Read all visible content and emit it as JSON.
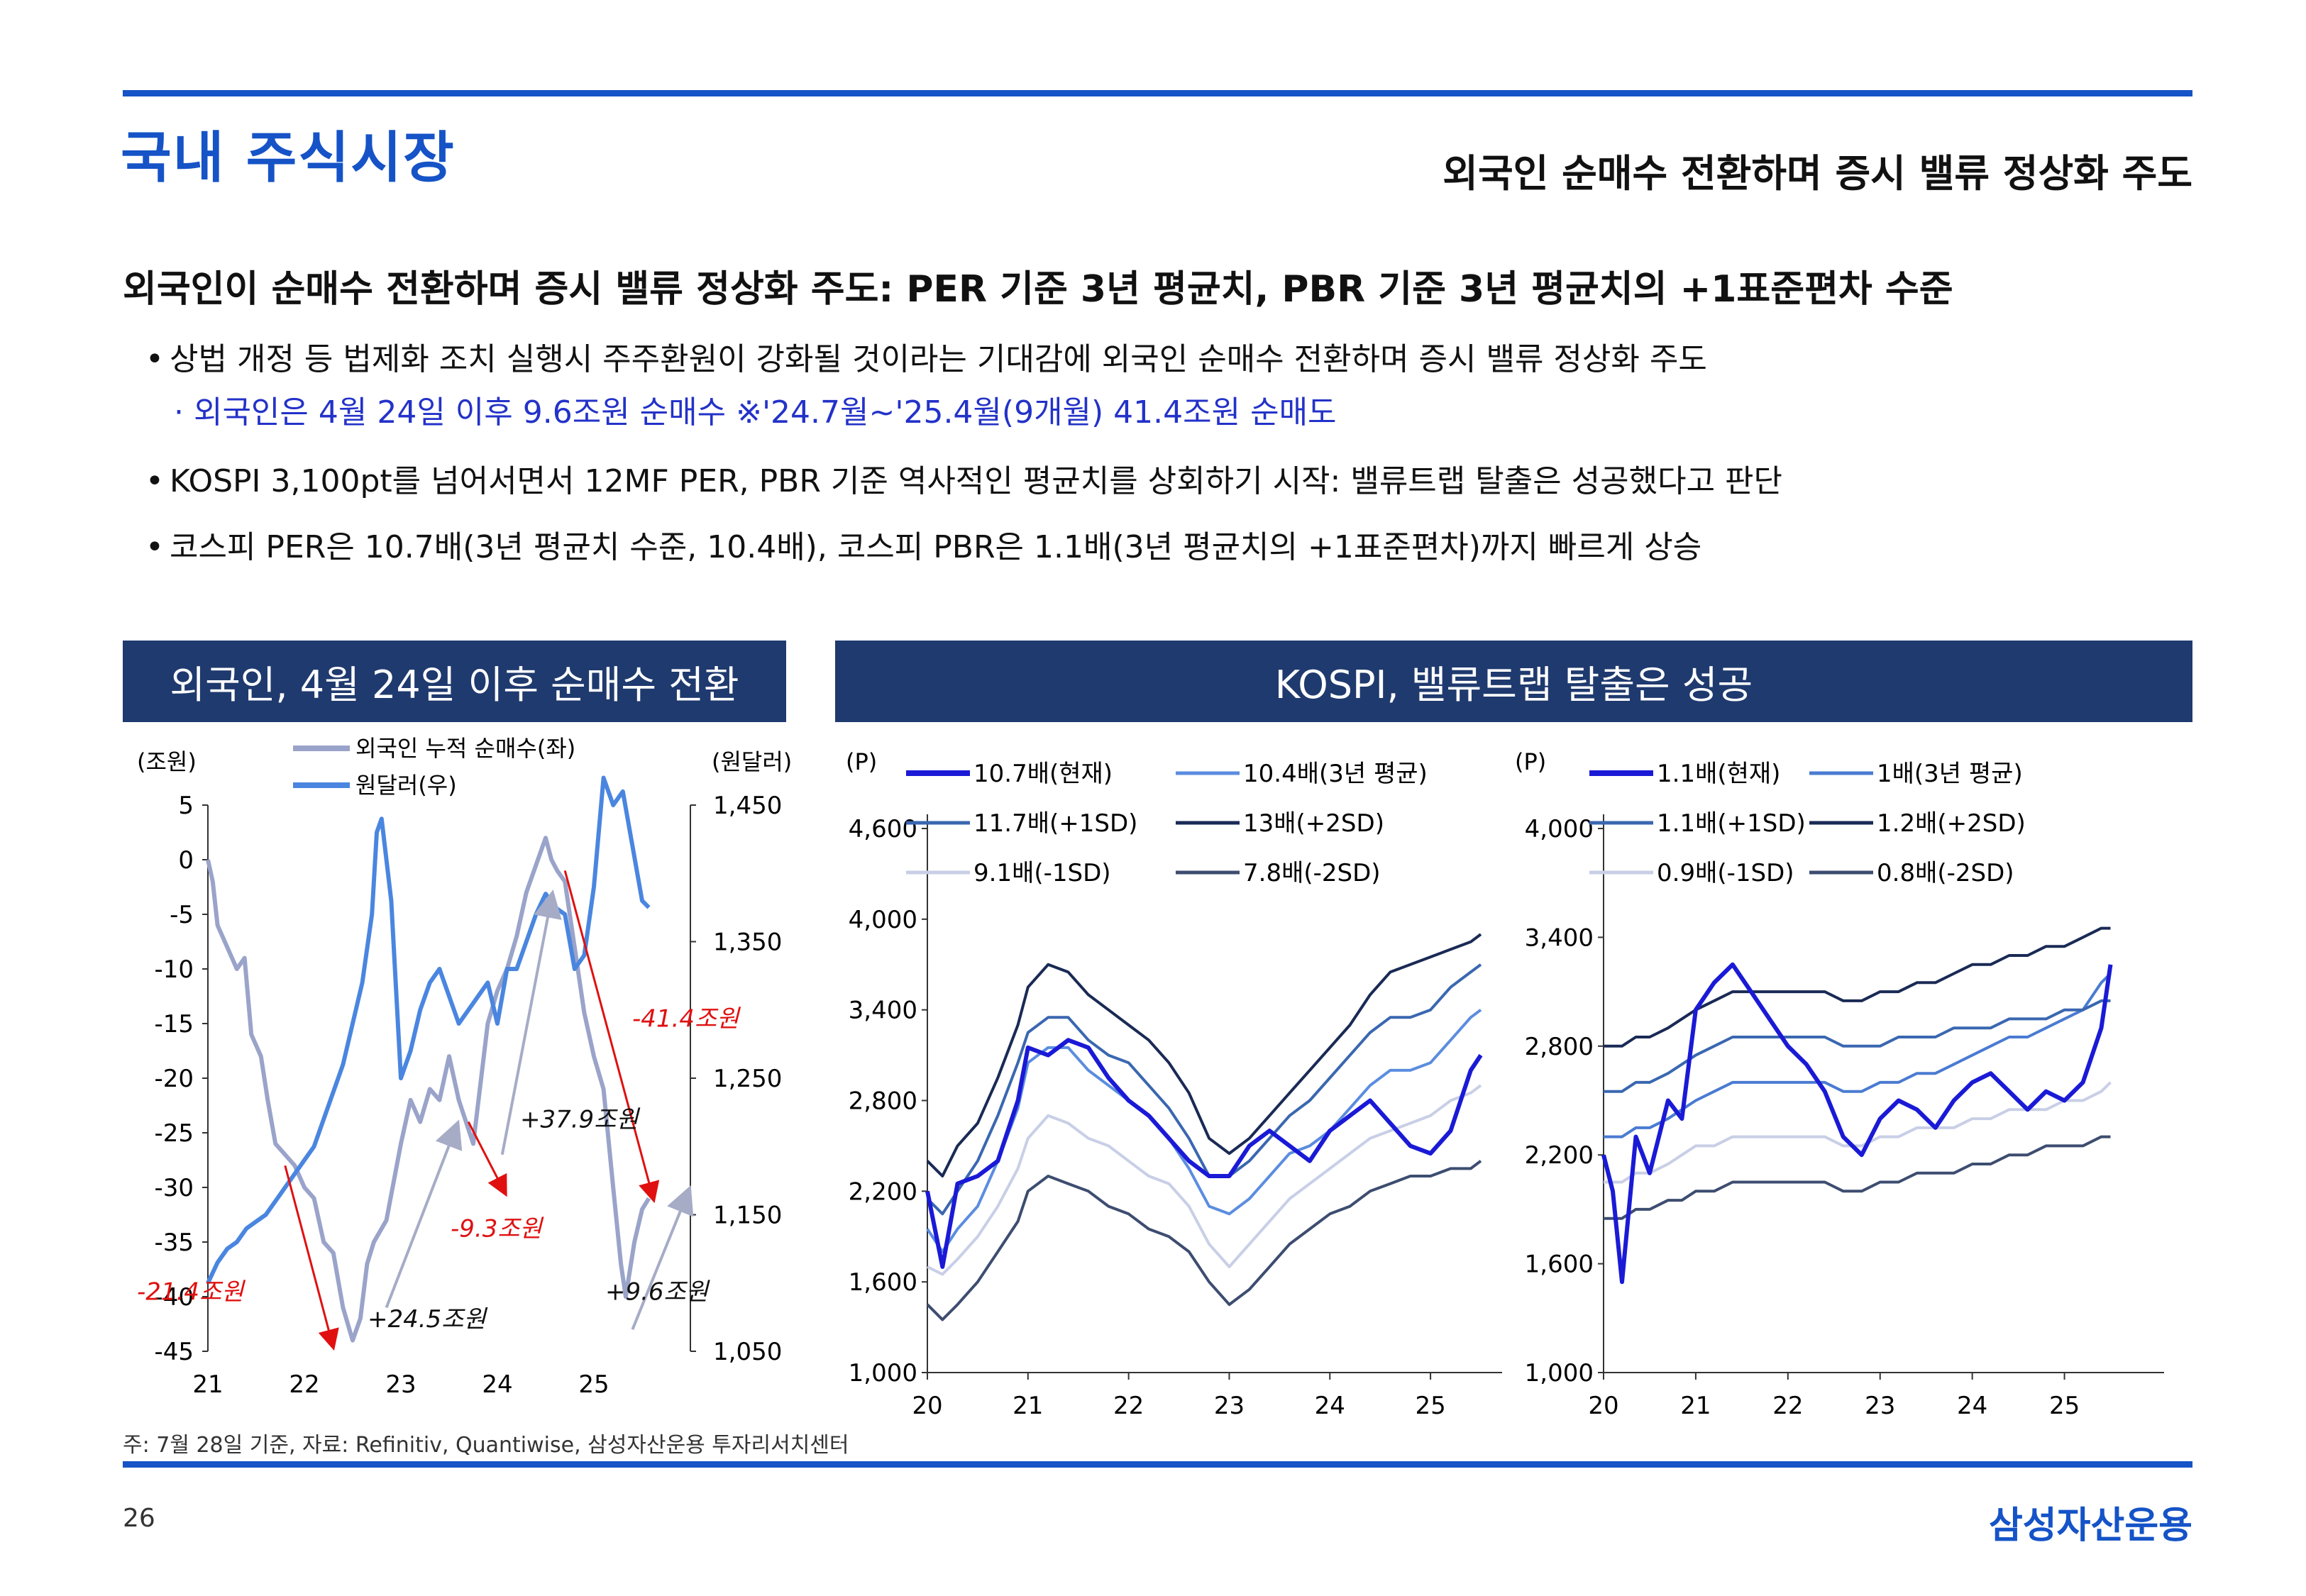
{
  "header": {
    "section_title": "국내 주식시장",
    "subtitle": "외국인 순매수 전환하며 증시 밸류 정상화 주도"
  },
  "headline": "외국인이 순매수 전환하며 증시 밸류 정상화 주도: PER 기준 3년 평균치, PBR 기준 3년 평균치의 +1표준편차 수준",
  "bullets": [
    "상법 개정 등 법제화 조치 실행시 주주환원이 강화될 것이라는 기대감에 외국인 순매수 전환하며 증시 밸류 정상화 주도",
    "KOSPI 3,100pt를 넘어서면서 12MF PER, PBR 기준 역사적인 평균치를 상회하기 시작: 밸류트랩 탈출은 성공했다고 판단",
    "코스피 PER은 10.7배(3년 평균치 수준, 10.4배), 코스피 PBR은 1.1배(3년 평균치의 +1표준편차)까지 빠르게 상승"
  ],
  "bullet_note": "· 외국인은 4월 24일 이후 9.6조원 순매수 ※'24.7월~'25.4월(9개월) 41.4조원 순매도",
  "banners": {
    "left": "외국인, 4월 24일 이후 순매수 전환",
    "right": "KOSPI, 밸류트랩 탈출은 성공"
  },
  "chart_data": [
    {
      "type": "line",
      "x_ticks": [
        "21",
        "22",
        "23",
        "24",
        "25"
      ],
      "y_left": {
        "label": "(조원)",
        "ticks": [
          "5",
          "0",
          "-5",
          "-10",
          "-15",
          "-20",
          "-25",
          "-30",
          "-35",
          "-40",
          "-45"
        ],
        "range": [
          -45,
          5
        ]
      },
      "y_right": {
        "label": "(원달러)",
        "ticks": [
          "1,450",
          "1,350",
          "1,250",
          "1,150",
          "1,050"
        ],
        "range": [
          1050,
          1450
        ]
      },
      "series": [
        {
          "name": "외국인 누적 순매수(좌)",
          "color": "#9aa3c9",
          "axis": "left",
          "x": [
            2021.0,
            2021.05,
            2021.1,
            2021.2,
            2021.3,
            2021.38,
            2021.45,
            2021.55,
            2021.62,
            2021.7,
            2021.8,
            2021.9,
            2022.0,
            2022.1,
            2022.2,
            2022.3,
            2022.4,
            2022.5,
            2022.58,
            2022.65,
            2022.72,
            2022.85,
            2023.0,
            2023.1,
            2023.2,
            2023.3,
            2023.4,
            2023.5,
            2023.6,
            2023.75,
            2023.9,
            2024.0,
            2024.1,
            2024.2,
            2024.3,
            2024.42,
            2024.5,
            2024.56,
            2024.62,
            2024.7,
            2024.8,
            2024.9,
            2025.0,
            2025.1,
            2025.2,
            2025.28,
            2025.33,
            2025.42,
            2025.5,
            2025.57
          ],
          "y": [
            0,
            -2,
            -6,
            -8,
            -10,
            -9,
            -16,
            -18,
            -22,
            -26,
            -27,
            -28,
            -30,
            -31,
            -35,
            -36,
            -41,
            -44,
            -42,
            -37,
            -35,
            -33,
            -26,
            -22,
            -24,
            -21,
            -22,
            -18,
            -22,
            -26,
            -15,
            -12,
            -10,
            -7,
            -3,
            0,
            2,
            0,
            -1,
            -2,
            -8,
            -14,
            -18,
            -21,
            -30,
            -37,
            -40,
            -35,
            -32,
            -31
          ]
        },
        {
          "name": "원달러(우)",
          "color": "#4a86e0",
          "axis": "right",
          "x": [
            2021.0,
            2021.1,
            2021.2,
            2021.3,
            2021.4,
            2021.5,
            2021.6,
            2021.7,
            2021.8,
            2021.9,
            2022.0,
            2022.1,
            2022.2,
            2022.3,
            2022.4,
            2022.5,
            2022.6,
            2022.7,
            2022.75,
            2022.8,
            2022.85,
            2022.9,
            2023.0,
            2023.1,
            2023.2,
            2023.3,
            2023.4,
            2023.5,
            2023.6,
            2023.7,
            2023.8,
            2023.9,
            2024.0,
            2024.1,
            2024.2,
            2024.3,
            2024.4,
            2024.5,
            2024.6,
            2024.7,
            2024.8,
            2024.9,
            2025.0,
            2025.1,
            2025.2,
            2025.3,
            2025.4,
            2025.5,
            2025.57
          ],
          "y": [
            1100,
            1115,
            1125,
            1130,
            1140,
            1145,
            1150,
            1160,
            1170,
            1180,
            1190,
            1200,
            1220,
            1240,
            1260,
            1290,
            1320,
            1370,
            1430,
            1440,
            1410,
            1380,
            1250,
            1270,
            1300,
            1320,
            1330,
            1310,
            1290,
            1300,
            1310,
            1320,
            1290,
            1330,
            1330,
            1350,
            1370,
            1385,
            1375,
            1370,
            1330,
            1340,
            1390,
            1470,
            1450,
            1460,
            1420,
            1380,
            1375
          ]
        }
      ],
      "annotations": [
        "-21.4조원",
        "+24.5조원",
        "-9.3조원",
        "+37.9조원",
        "-41.4조원",
        "+9.6조원"
      ]
    },
    {
      "type": "line",
      "x_ticks": [
        "20",
        "21",
        "22",
        "23",
        "24",
        "25"
      ],
      "y": {
        "label": "(P)",
        "ticks": [
          "4,600",
          "4,000",
          "3,400",
          "2,800",
          "2,200",
          "1,600",
          "1,000"
        ],
        "range": [
          1000,
          4600
        ]
      },
      "x": [
        2020.0,
        2020.15,
        2020.3,
        2020.5,
        2020.7,
        2020.9,
        2021.0,
        2021.2,
        2021.4,
        2021.6,
        2021.8,
        2022.0,
        2022.2,
        2022.4,
        2022.6,
        2022.8,
        2023.0,
        2023.2,
        2023.4,
        2023.6,
        2023.8,
        2024.0,
        2024.2,
        2024.4,
        2024.6,
        2024.8,
        2025.0,
        2025.2,
        2025.4,
        2025.5
      ],
      "series": [
        {
          "name": "10.7배(현재)",
          "color": "#1a1ad6",
          "y": [
            2200,
            1700,
            2250,
            2300,
            2400,
            2800,
            3150,
            3100,
            3200,
            3150,
            2950,
            2800,
            2700,
            2550,
            2400,
            2300,
            2300,
            2500,
            2600,
            2500,
            2400,
            2600,
            2700,
            2800,
            2650,
            2500,
            2450,
            2600,
            3000,
            3100
          ]
        },
        {
          "name": "10.4배(3년 평균)",
          "color": "#5b8de0",
          "y": [
            1950,
            1800,
            1950,
            2100,
            2400,
            2750,
            3050,
            3150,
            3150,
            3000,
            2900,
            2800,
            2700,
            2550,
            2350,
            2100,
            2050,
            2150,
            2300,
            2450,
            2500,
            2600,
            2750,
            2900,
            3000,
            3000,
            3050,
            3200,
            3350,
            3400
          ]
        },
        {
          "name": "11.7배(+1SD)",
          "color": "#3a67b0",
          "y": [
            2150,
            2050,
            2200,
            2400,
            2700,
            3050,
            3250,
            3350,
            3350,
            3200,
            3100,
            3050,
            2900,
            2750,
            2550,
            2300,
            2300,
            2400,
            2550,
            2700,
            2800,
            2950,
            3100,
            3250,
            3350,
            3350,
            3400,
            3550,
            3650,
            3700
          ]
        },
        {
          "name": "13배(+2SD)",
          "color": "#1a2a55",
          "y": [
            2400,
            2300,
            2500,
            2650,
            2950,
            3300,
            3550,
            3700,
            3650,
            3500,
            3400,
            3300,
            3200,
            3050,
            2850,
            2550,
            2450,
            2550,
            2700,
            2850,
            3000,
            3150,
            3300,
            3500,
            3650,
            3700,
            3750,
            3800,
            3850,
            3900
          ]
        },
        {
          "name": "9.1배(-1SD)",
          "color": "#c8cfe6",
          "y": [
            1700,
            1650,
            1750,
            1900,
            2100,
            2350,
            2550,
            2700,
            2650,
            2550,
            2500,
            2400,
            2300,
            2250,
            2100,
            1850,
            1700,
            1850,
            2000,
            2150,
            2250,
            2350,
            2450,
            2550,
            2600,
            2650,
            2700,
            2800,
            2850,
            2900
          ]
        },
        {
          "name": "7.8배(-2SD)",
          "color": "#3d4d70",
          "y": [
            1450,
            1350,
            1450,
            1600,
            1800,
            2000,
            2200,
            2300,
            2250,
            2200,
            2100,
            2050,
            1950,
            1900,
            1800,
            1600,
            1450,
            1550,
            1700,
            1850,
            1950,
            2050,
            2100,
            2200,
            2250,
            2300,
            2300,
            2350,
            2350,
            2400
          ]
        }
      ]
    },
    {
      "type": "line",
      "x_ticks": [
        "20",
        "21",
        "22",
        "23",
        "24",
        "25"
      ],
      "y": {
        "label": "(P)",
        "ticks": [
          "4,000",
          "3,400",
          "2,800",
          "2,200",
          "1,600",
          "1,000"
        ],
        "range": [
          1000,
          4000
        ]
      },
      "x": [
        2020.0,
        2020.1,
        2020.2,
        2020.35,
        2020.5,
        2020.7,
        2020.85,
        2021.0,
        2021.2,
        2021.4,
        2021.6,
        2021.8,
        2022.0,
        2022.2,
        2022.4,
        2022.6,
        2022.8,
        2023.0,
        2023.2,
        2023.4,
        2023.6,
        2023.8,
        2024.0,
        2024.2,
        2024.4,
        2024.6,
        2024.8,
        2025.0,
        2025.2,
        2025.4,
        2025.5
      ],
      "series": [
        {
          "name": "1.1배(현재)",
          "color": "#1a1ad6",
          "y": [
            2200,
            2000,
            1500,
            2300,
            2100,
            2500,
            2400,
            3000,
            3150,
            3250,
            3100,
            2950,
            2800,
            2700,
            2550,
            2300,
            2200,
            2400,
            2500,
            2450,
            2350,
            2500,
            2600,
            2650,
            2550,
            2450,
            2550,
            2500,
            2600,
            2900,
            3250
          ]
        },
        {
          "name": "1배(3년 평균)",
          "color": "#4a7bd2",
          "y": [
            2300,
            2300,
            2300,
            2350,
            2350,
            2400,
            2450,
            2500,
            2550,
            2600,
            2600,
            2600,
            2600,
            2600,
            2600,
            2550,
            2550,
            2600,
            2600,
            2650,
            2650,
            2700,
            2750,
            2800,
            2850,
            2850,
            2900,
            2950,
            3000,
            3150,
            3200
          ]
        },
        {
          "name": "1.1배(+1SD)",
          "color": "#3a67b0",
          "y": [
            2550,
            2550,
            2550,
            2600,
            2600,
            2650,
            2700,
            2750,
            2800,
            2850,
            2850,
            2850,
            2850,
            2850,
            2850,
            2800,
            2800,
            2800,
            2850,
            2850,
            2850,
            2900,
            2900,
            2900,
            2950,
            2950,
            2950,
            3000,
            3000,
            3050,
            3050
          ]
        },
        {
          "name": "1.2배(+2SD)",
          "color": "#1a2a55",
          "y": [
            2800,
            2800,
            2800,
            2850,
            2850,
            2900,
            2950,
            3000,
            3050,
            3100,
            3100,
            3100,
            3100,
            3100,
            3100,
            3050,
            3050,
            3100,
            3100,
            3150,
            3150,
            3200,
            3250,
            3250,
            3300,
            3300,
            3350,
            3350,
            3400,
            3450,
            3450
          ]
        },
        {
          "name": "0.9배(-1SD)",
          "color": "#c8cfe6",
          "y": [
            2050,
            2050,
            2050,
            2100,
            2100,
            2150,
            2200,
            2250,
            2250,
            2300,
            2300,
            2300,
            2300,
            2300,
            2300,
            2250,
            2250,
            2300,
            2300,
            2350,
            2350,
            2350,
            2400,
            2400,
            2450,
            2450,
            2450,
            2500,
            2500,
            2550,
            2600
          ]
        },
        {
          "name": "0.8배(-2SD)",
          "color": "#3d4d70",
          "y": [
            1850,
            1850,
            1850,
            1900,
            1900,
            1950,
            1950,
            2000,
            2000,
            2050,
            2050,
            2050,
            2050,
            2050,
            2050,
            2000,
            2000,
            2050,
            2050,
            2100,
            2100,
            2100,
            2150,
            2150,
            2200,
            2200,
            2250,
            2250,
            2250,
            2300,
            2300
          ]
        }
      ]
    }
  ],
  "footnote": "주: 7월 28일 기준, 자료: Refinitiv, Quantiwise, 삼성자산운용 투자리서치센터",
  "page_number": "26",
  "company": "삼성자산운용"
}
